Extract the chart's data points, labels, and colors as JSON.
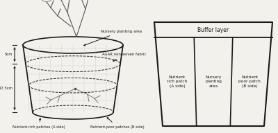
{
  "bg_color": "#f2f1ec",
  "left_diagram": {
    "cylinder_label_top": "Nursery planting area",
    "cylinder_label_agar": "AGAR non woven fabric",
    "dim_label_top": "5cm",
    "dim_label_bottom": "17.5cm",
    "label_left": "Nutrient-rich patches (A side)",
    "label_right": "Nutrient-poor patches (B side)"
  },
  "right_diagram": {
    "buffer_label": "Buffer layer",
    "left_label": "Nutrient\nrich patch\n(A side)",
    "center_label": "Nursery\nplanting\narea",
    "right_label": "Nutrient\npoor patch\n(B side)"
  },
  "line_color": "#1a1a1a",
  "text_color": "#1a1a1a",
  "font_size": 5.5,
  "font_size_small": 4.2
}
